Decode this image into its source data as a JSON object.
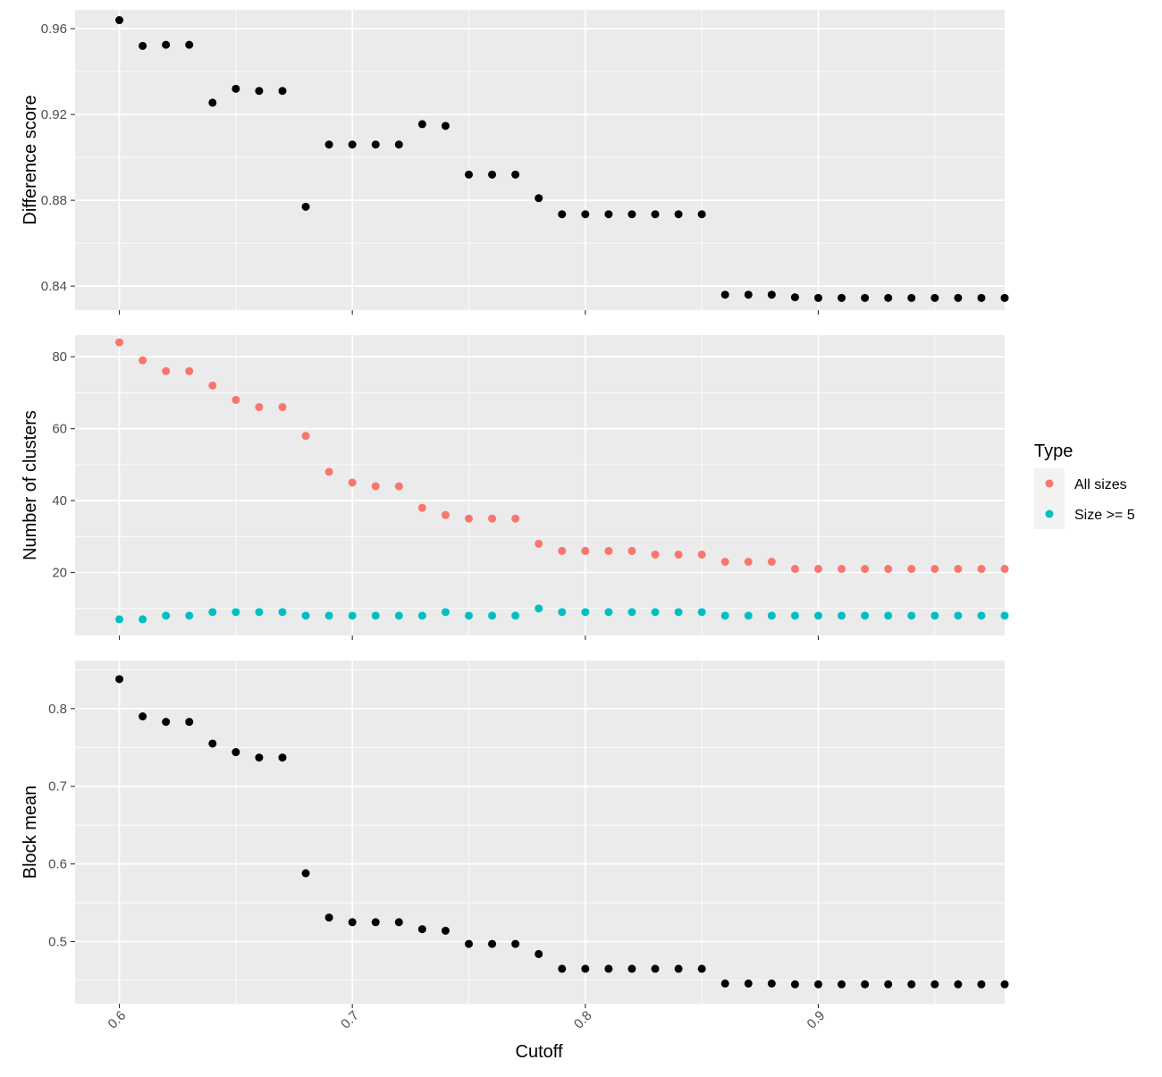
{
  "chart_data": {
    "type": "scatter",
    "facets": 3,
    "shared_x": {
      "label": "Cutoff",
      "ticks": [
        0.6,
        0.7,
        0.8,
        0.9
      ],
      "tick_labels": [
        "0.6",
        "0.7",
        "0.8",
        "0.9"
      ],
      "xlim": [
        0.581,
        0.98
      ],
      "minor_ticks": [
        0.65,
        0.75,
        0.85,
        0.95
      ],
      "tick_label_rotation": "-45deg"
    },
    "x": [
      0.6,
      0.61,
      0.62,
      0.63,
      0.64,
      0.65,
      0.66,
      0.67,
      0.68,
      0.69,
      0.7,
      0.71,
      0.72,
      0.73,
      0.74,
      0.75,
      0.76,
      0.77,
      0.78,
      0.79,
      0.8,
      0.81,
      0.82,
      0.83,
      0.84,
      0.85,
      0.86,
      0.87,
      0.88,
      0.89,
      0.9,
      0.91,
      0.92,
      0.93,
      0.94,
      0.95,
      0.96,
      0.97,
      0.98
    ],
    "panels": [
      {
        "ylabel": "Difference score",
        "ylim": [
          0.8288,
          0.9688
        ],
        "yticks": [
          0.84,
          0.88,
          0.92,
          0.96
        ],
        "ytick_labels": [
          "0.84",
          "0.88",
          "0.92",
          "0.96"
        ],
        "series": [
          {
            "color": "#000000",
            "values": [
              0.964,
              0.952,
              0.9525,
              0.9525,
              0.9255,
              0.932,
              0.931,
              0.931,
              0.877,
              0.906,
              0.906,
              0.906,
              0.906,
              0.9155,
              0.9147,
              0.892,
              0.892,
              0.892,
              0.881,
              0.8735,
              0.8735,
              0.8735,
              0.8735,
              0.8735,
              0.8735,
              0.8735,
              0.836,
              0.836,
              0.836,
              0.8348,
              0.8345,
              0.8345,
              0.8345,
              0.8345,
              0.8345,
              0.8345,
              0.8345,
              0.8345,
              0.8345
            ]
          }
        ]
      },
      {
        "ylabel": "Number of clusters",
        "ylim": [
          2.5,
          86
        ],
        "yticks": [
          20,
          40,
          60,
          80
        ],
        "ytick_labels": [
          "20",
          "40",
          "60",
          "80"
        ],
        "series": [
          {
            "name": "All sizes",
            "color": "#F8766D",
            "values": [
              84,
              79,
              76,
              76,
              72,
              68,
              66,
              66,
              58,
              48,
              45,
              44,
              44,
              38,
              36,
              35,
              35,
              35,
              28,
              26,
              26,
              26,
              26,
              25,
              25,
              25,
              23,
              23,
              23,
              21,
              21,
              21,
              21,
              21,
              21,
              21,
              21,
              21,
              21
            ]
          },
          {
            "name": "Size >= 5",
            "color": "#00BFC4",
            "values": [
              7,
              7,
              8,
              8,
              9,
              9,
              9,
              9,
              8,
              8,
              8,
              8,
              8,
              8,
              9,
              8,
              8,
              8,
              10,
              9,
              9,
              9,
              9,
              9,
              9,
              9,
              8,
              8,
              8,
              8,
              8,
              8,
              8,
              8,
              8,
              8,
              8,
              8,
              8
            ]
          }
        ]
      },
      {
        "ylabel": "Block mean",
        "ylim": [
          0.42,
          0.862
        ],
        "yticks": [
          0.5,
          0.6,
          0.7,
          0.8
        ],
        "ytick_labels": [
          "0.5",
          "0.6",
          "0.7",
          "0.8"
        ],
        "series": [
          {
            "color": "#000000",
            "values": [
              0.838,
              0.79,
              0.783,
              0.783,
              0.755,
              0.744,
              0.737,
              0.737,
              0.588,
              0.531,
              0.525,
              0.525,
              0.525,
              0.516,
              0.514,
              0.497,
              0.497,
              0.497,
              0.484,
              0.465,
              0.465,
              0.465,
              0.465,
              0.465,
              0.465,
              0.465,
              0.446,
              0.446,
              0.446,
              0.445,
              0.445,
              0.445,
              0.445,
              0.445,
              0.445,
              0.445,
              0.445,
              0.445,
              0.445
            ]
          }
        ]
      }
    ],
    "legend": {
      "title": "Type",
      "placement": "right",
      "entries": [
        {
          "label": "All sizes",
          "color": "#F8766D"
        },
        {
          "label": "Size >= 5",
          "color": "#00BFC4"
        }
      ]
    },
    "panel_background": "#EBEBEB",
    "grid": true,
    "grid_color": "#FFFFFF"
  }
}
